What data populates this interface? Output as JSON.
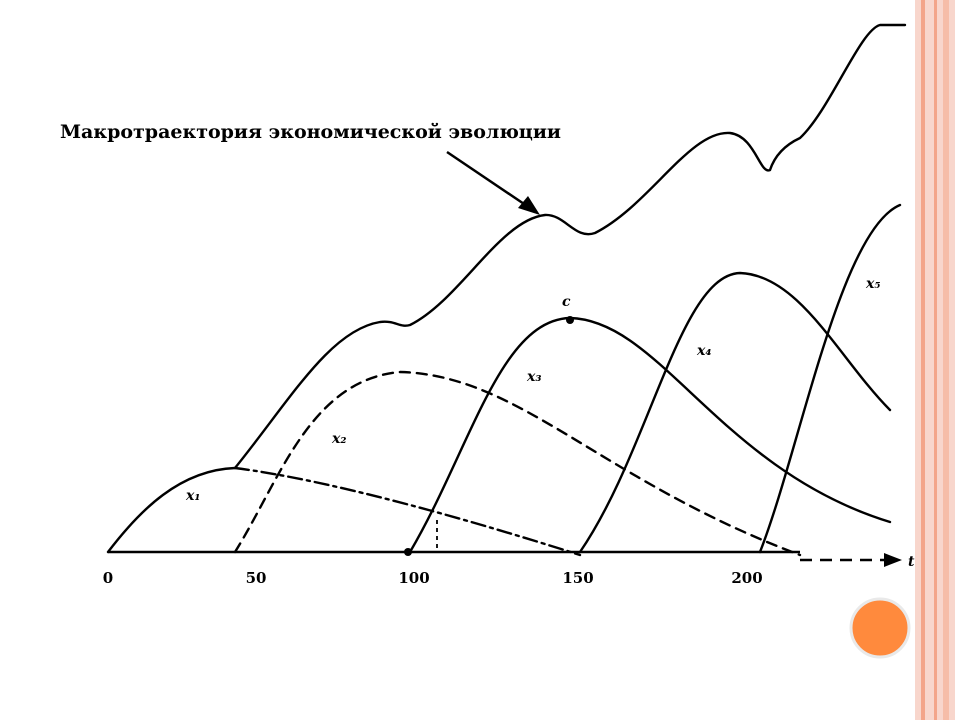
{
  "title": "Макротраектория экономической эволюции",
  "curves": [
    {
      "label": "x₁"
    },
    {
      "label": "x₂"
    },
    {
      "label": "x₃"
    },
    {
      "label": "x₄"
    },
    {
      "label": "x₅"
    }
  ],
  "point_label": "c",
  "axis": {
    "ticks": [
      "0",
      "50",
      "100",
      "150",
      "200"
    ],
    "label": "t"
  }
}
